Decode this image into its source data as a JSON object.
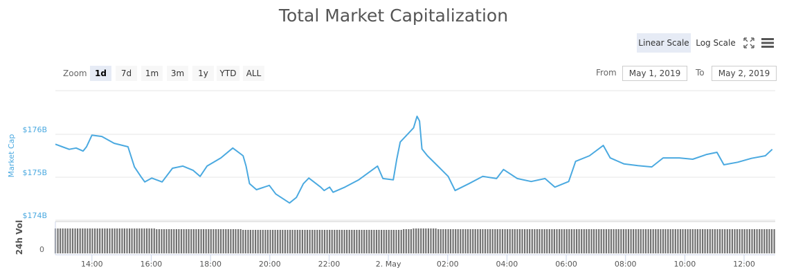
{
  "chart_data": {
    "type": "line",
    "title": "Total Market Capitalization",
    "ylabel": "Market Cap",
    "y_ticks": [
      "$174B",
      "$175B",
      "$176B"
    ],
    "ylim": [
      174,
      176.7
    ],
    "xlim": [
      "2019-05-01 12:46",
      "2019-05-02 13:03"
    ],
    "x_ticks": [
      "14:00",
      "16:00",
      "18:00",
      "20:00",
      "22:00",
      "2. May",
      "02:00",
      "04:00",
      "06:00",
      "08:00",
      "10:00",
      "12:00"
    ],
    "grid": true,
    "line_color": "#4aa9e0",
    "series": [
      {
        "points": [
          [
            "2019-05-01 12:46",
            175.77
          ],
          [
            "2019-05-01 13:00",
            175.71
          ],
          [
            "2019-05-01 13:14",
            175.65
          ],
          [
            "2019-05-01 13:28",
            175.68
          ],
          [
            "2019-05-01 13:42",
            175.61
          ],
          [
            "2019-05-01 13:49",
            175.71
          ],
          [
            "2019-05-01 14:00",
            175.98
          ],
          [
            "2019-05-01 14:20",
            175.95
          ],
          [
            "2019-05-01 14:45",
            175.79
          ],
          [
            "2019-05-01 15:13",
            175.71
          ],
          [
            "2019-05-01 15:26",
            175.24
          ],
          [
            "2019-05-01 15:40",
            175.0
          ],
          [
            "2019-05-01 15:47",
            174.89
          ],
          [
            "2019-05-01 16:01",
            174.98
          ],
          [
            "2019-05-01 16:22",
            174.89
          ],
          [
            "2019-05-01 16:43",
            175.21
          ],
          [
            "2019-05-01 17:04",
            175.26
          ],
          [
            "2019-05-01 17:25",
            175.16
          ],
          [
            "2019-05-01 17:39",
            175.02
          ],
          [
            "2019-05-01 17:53",
            175.26
          ],
          [
            "2019-05-01 18:21",
            175.45
          ],
          [
            "2019-05-01 18:45",
            175.68
          ],
          [
            "2019-05-01 19:06",
            175.5
          ],
          [
            "2019-05-01 19:12",
            175.26
          ],
          [
            "2019-05-01 19:19",
            174.85
          ],
          [
            "2019-05-01 19:33",
            174.71
          ],
          [
            "2019-05-01 19:59",
            174.81
          ],
          [
            "2019-05-01 20:12",
            174.61
          ],
          [
            "2019-05-01 20:40",
            174.4
          ],
          [
            "2019-05-01 20:54",
            174.53
          ],
          [
            "2019-05-01 21:08",
            174.85
          ],
          [
            "2019-05-01 21:19",
            174.98
          ],
          [
            "2019-05-01 21:43",
            174.77
          ],
          [
            "2019-05-01 21:50",
            174.69
          ],
          [
            "2019-05-01 22:01",
            174.77
          ],
          [
            "2019-05-01 22:08",
            174.65
          ],
          [
            "2019-05-01 22:32",
            174.77
          ],
          [
            "2019-05-01 23:00",
            174.94
          ],
          [
            "2019-05-01 23:38",
            175.26
          ],
          [
            "2019-05-01 23:49",
            174.97
          ],
          [
            "2019-05-02 00:10",
            174.94
          ],
          [
            "2019-05-02 00:17",
            175.42
          ],
          [
            "2019-05-02 00:24",
            175.82
          ],
          [
            "2019-05-02 00:51",
            176.15
          ],
          [
            "2019-05-02 00:58",
            176.42
          ],
          [
            "2019-05-02 01:03",
            176.31
          ],
          [
            "2019-05-02 01:08",
            175.66
          ],
          [
            "2019-05-02 01:19",
            175.5
          ],
          [
            "2019-05-02 01:47",
            175.18
          ],
          [
            "2019-05-02 02:01",
            175.02
          ],
          [
            "2019-05-02 02:15",
            174.69
          ],
          [
            "2019-05-02 02:43",
            174.85
          ],
          [
            "2019-05-02 03:11",
            175.02
          ],
          [
            "2019-05-02 03:39",
            174.97
          ],
          [
            "2019-05-02 03:53",
            175.18
          ],
          [
            "2019-05-02 04:21",
            174.97
          ],
          [
            "2019-05-02 04:49",
            174.9
          ],
          [
            "2019-05-02 05:17",
            174.97
          ],
          [
            "2019-05-02 05:37",
            174.77
          ],
          [
            "2019-05-02 06:05",
            174.9
          ],
          [
            "2019-05-02 06:19",
            175.37
          ],
          [
            "2019-05-02 06:47",
            175.5
          ],
          [
            "2019-05-02 07:15",
            175.74
          ],
          [
            "2019-05-02 07:29",
            175.45
          ],
          [
            "2019-05-02 07:57",
            175.31
          ],
          [
            "2019-05-02 08:25",
            175.27
          ],
          [
            "2019-05-02 08:53",
            175.24
          ],
          [
            "2019-05-02 09:16",
            175.45
          ],
          [
            "2019-05-02 09:49",
            175.45
          ],
          [
            "2019-05-02 10:16",
            175.42
          ],
          [
            "2019-05-02 10:44",
            175.53
          ],
          [
            "2019-05-02 11:05",
            175.58
          ],
          [
            "2019-05-02 11:19",
            175.29
          ],
          [
            "2019-05-02 11:47",
            175.35
          ],
          [
            "2019-05-02 12:15",
            175.44
          ],
          [
            "2019-05-02 12:43",
            175.5
          ],
          [
            "2019-05-02 12:57",
            175.65
          ]
        ]
      }
    ],
    "volume": {
      "ylabel": "24h Vol",
      "y_tick": "0",
      "bar_color": "#707070",
      "interval_minutes": 5
    }
  },
  "toolbar": {
    "linear_scale": "Linear Scale",
    "log_scale": "Log Scale",
    "zoom_label": "Zoom",
    "zoom_options": [
      "1d",
      "7d",
      "1m",
      "3m",
      "1y",
      "YTD",
      "ALL"
    ],
    "selected_zoom": "1d",
    "from_label": "From",
    "from_value": "May 1, 2019",
    "to_label": "To",
    "to_value": "May 2, 2019"
  }
}
